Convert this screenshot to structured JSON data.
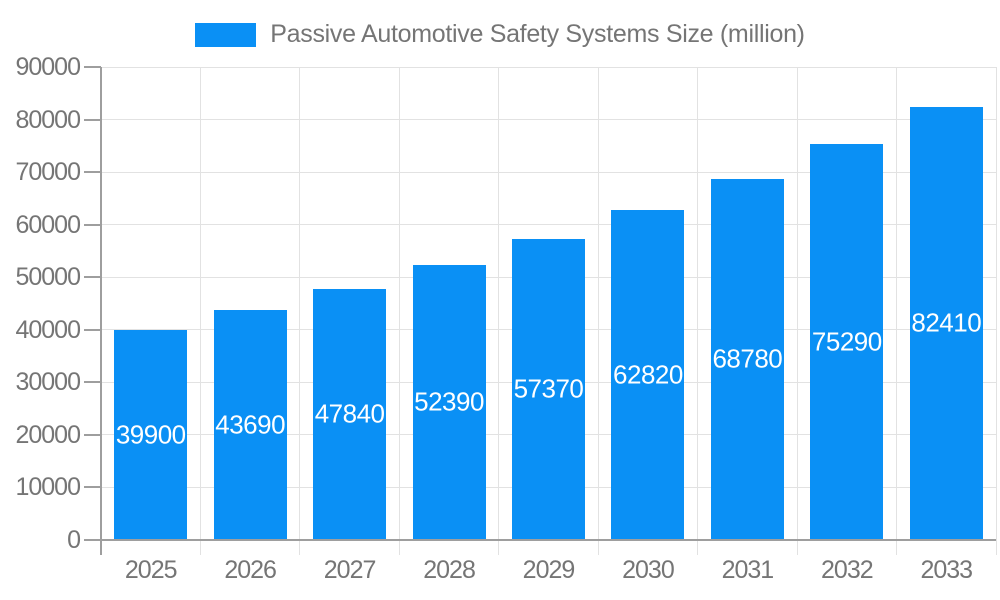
{
  "chart_data": {
    "type": "bar",
    "title": "Passive Automotive Safety Systems Size (million)",
    "legend_position": "top",
    "categories": [
      "2025",
      "2026",
      "2027",
      "2028",
      "2029",
      "2030",
      "2031",
      "2032",
      "2033"
    ],
    "series": [
      {
        "name": "Passive Automotive Safety Systems Size (million)",
        "values": [
          39900,
          43690,
          47840,
          52390,
          57370,
          62820,
          68780,
          75290,
          82410
        ]
      }
    ],
    "value_labels_visible": true,
    "xlabel": "",
    "ylabel": "",
    "ylim": [
      0,
      90000
    ],
    "y_ticks": [
      0,
      10000,
      20000,
      30000,
      40000,
      50000,
      60000,
      70000,
      80000,
      90000
    ],
    "grid": {
      "horizontal": true,
      "vertical": true
    },
    "colors": {
      "bar": "#0a90f5",
      "axis": "#9e9e9e",
      "grid": "#e2e2e2",
      "label_text": "#757575",
      "value_text": "#ffffff",
      "background": "#ffffff"
    }
  }
}
